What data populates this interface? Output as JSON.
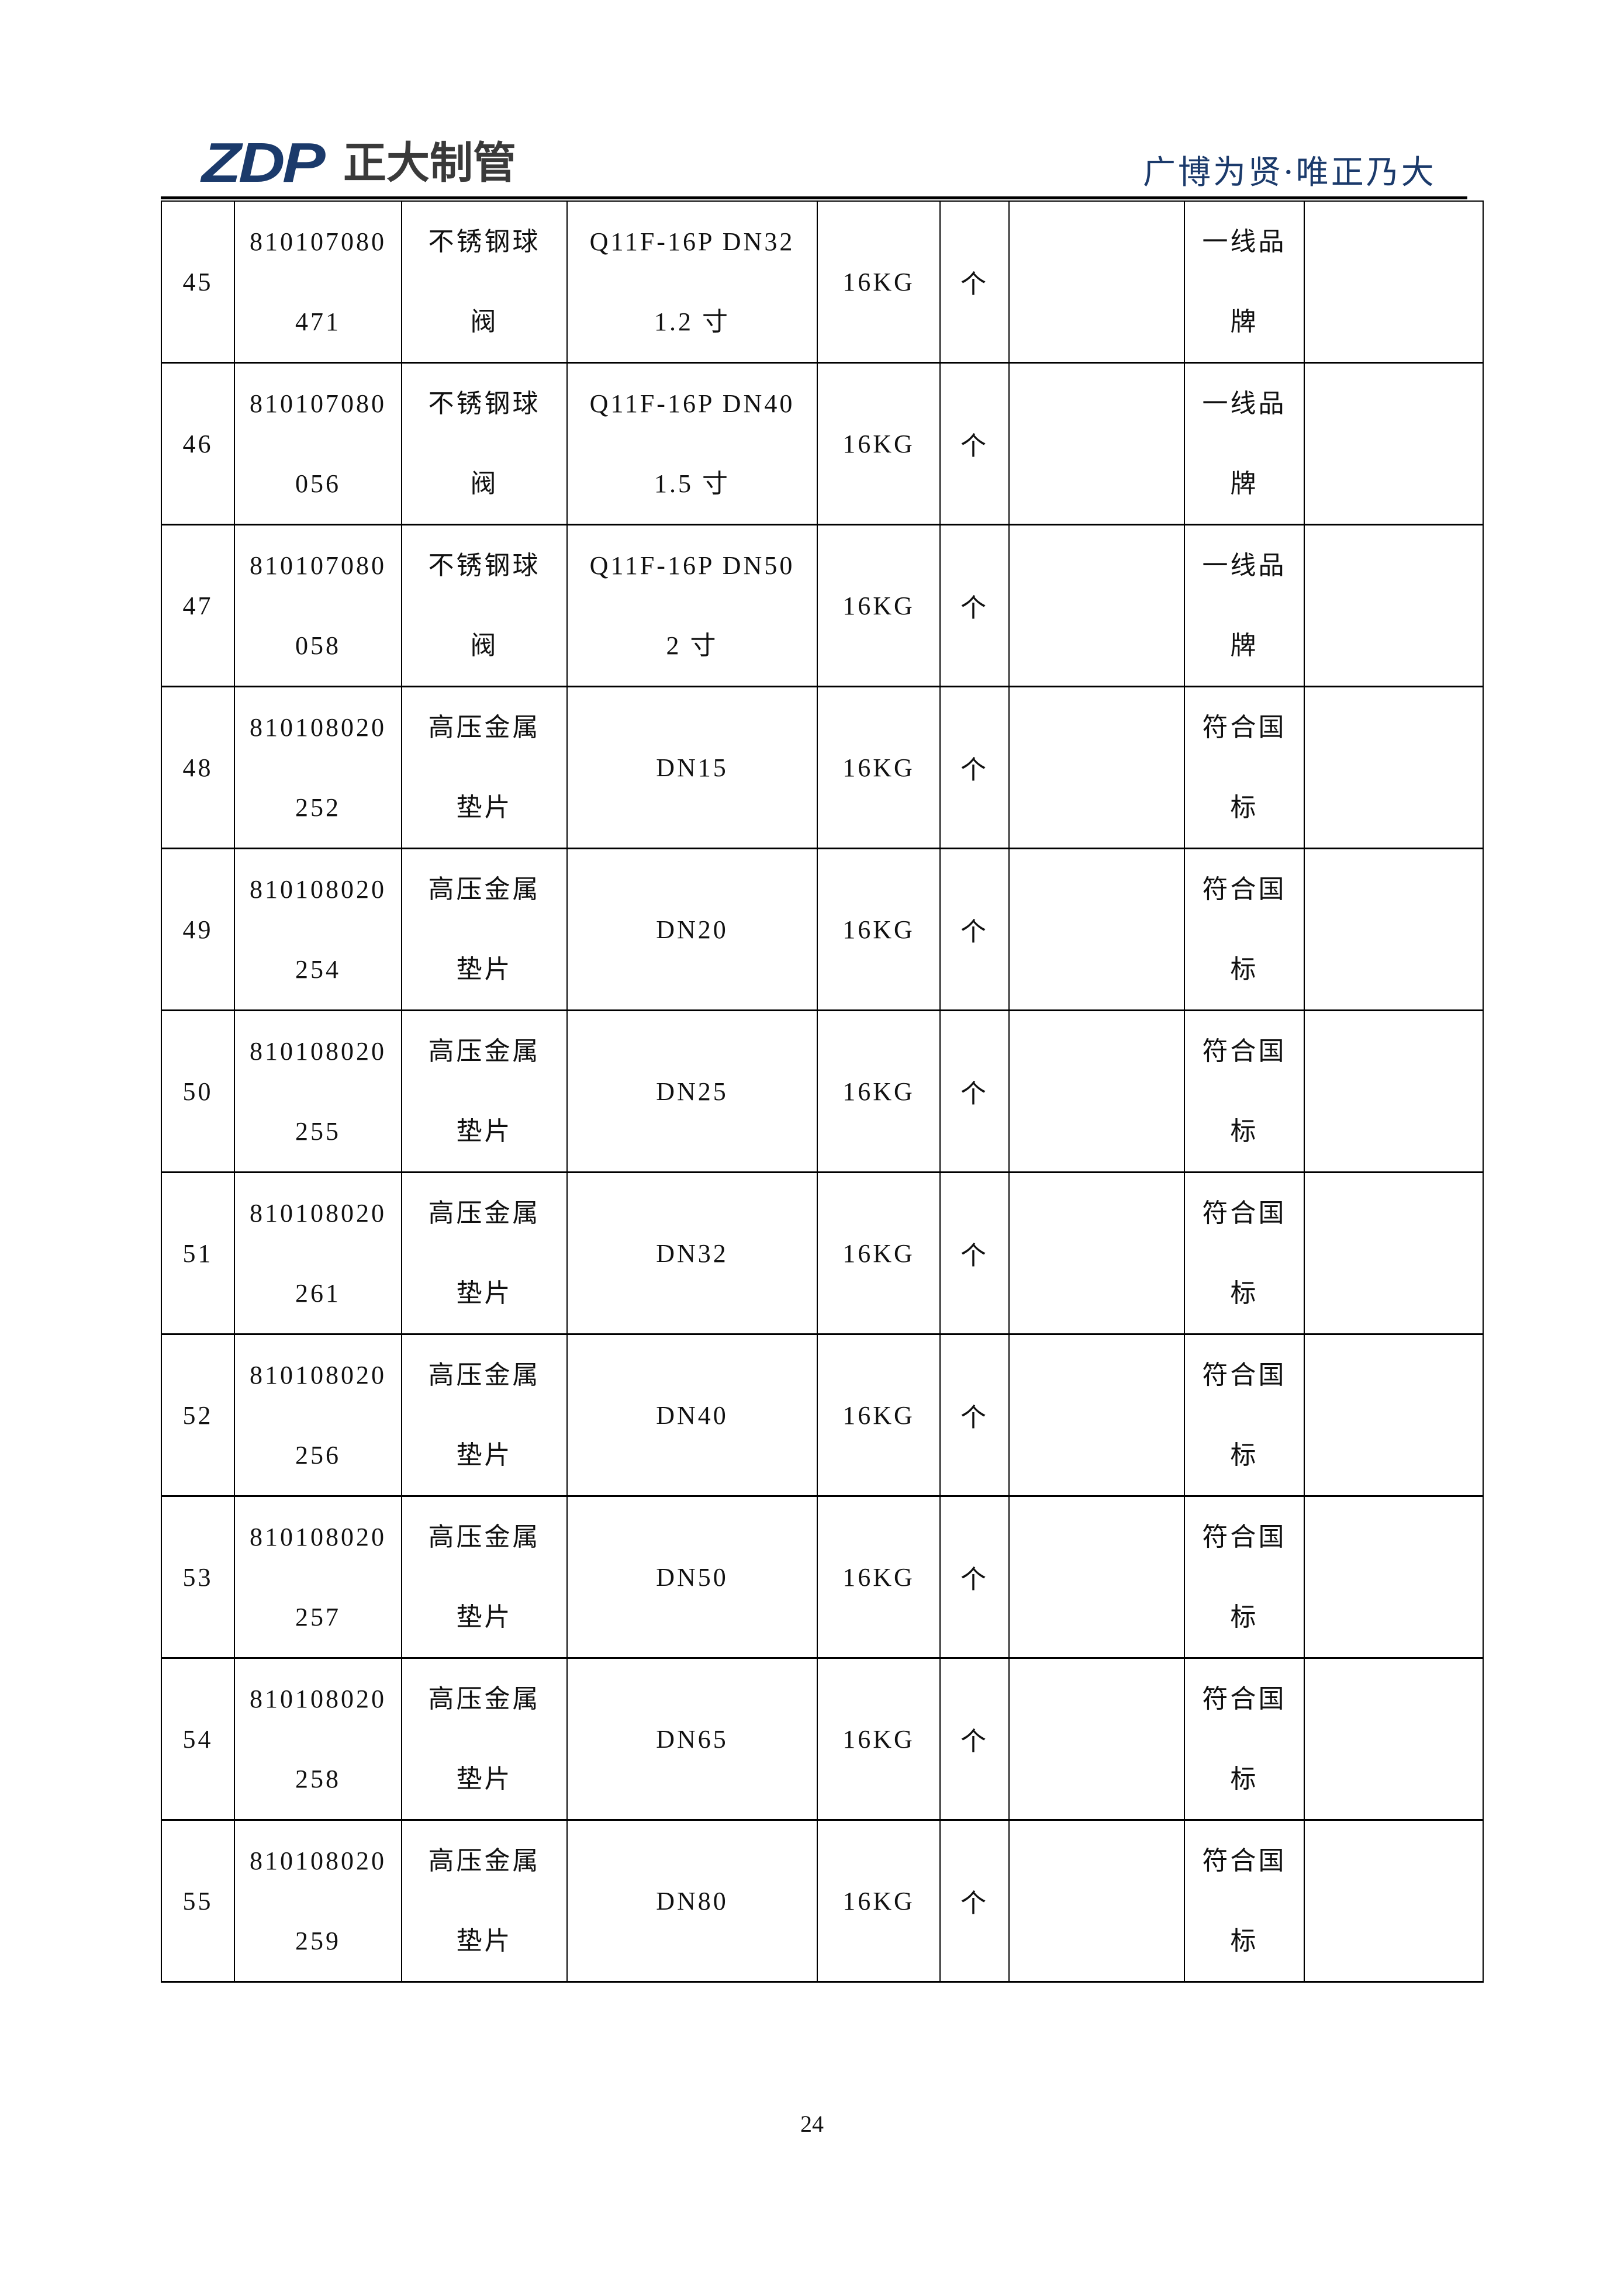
{
  "header": {
    "logo_mark": "ZDP",
    "logo_name": "正大制管",
    "slogan": "广博为贤·唯正乃大",
    "brand_color": "#1b3a6b"
  },
  "table": {
    "rows": [
      {
        "no": "45",
        "code": [
          "810107080",
          "471"
        ],
        "name": [
          "不锈钢球",
          "阀"
        ],
        "spec": [
          "Q11F-16P DN32",
          "1.2 寸"
        ],
        "pressure": "16KG",
        "unit": "个",
        "qty": "",
        "remark": [
          "一线品",
          "牌"
        ],
        "note": ""
      },
      {
        "no": "46",
        "code": [
          "810107080",
          "056"
        ],
        "name": [
          "不锈钢球",
          "阀"
        ],
        "spec": [
          "Q11F-16P DN40",
          "1.5 寸"
        ],
        "pressure": "16KG",
        "unit": "个",
        "qty": "",
        "remark": [
          "一线品",
          "牌"
        ],
        "note": ""
      },
      {
        "no": "47",
        "code": [
          "810107080",
          "058"
        ],
        "name": [
          "不锈钢球",
          "阀"
        ],
        "spec": [
          "Q11F-16P  DN50",
          "2 寸"
        ],
        "pressure": "16KG",
        "unit": "个",
        "qty": "",
        "remark": [
          "一线品",
          "牌"
        ],
        "note": ""
      },
      {
        "no": "48",
        "code": [
          "810108020",
          "252"
        ],
        "name": [
          "高压金属",
          "垫片"
        ],
        "spec": [
          "DN15"
        ],
        "pressure": "16KG",
        "unit": "个",
        "qty": "",
        "remark": [
          "符合国",
          "标"
        ],
        "note": ""
      },
      {
        "no": "49",
        "code": [
          "810108020",
          "254"
        ],
        "name": [
          "高压金属",
          "垫片"
        ],
        "spec": [
          "DN20"
        ],
        "pressure": "16KG",
        "unit": "个",
        "qty": "",
        "remark": [
          "符合国",
          "标"
        ],
        "note": ""
      },
      {
        "no": "50",
        "code": [
          "810108020",
          "255"
        ],
        "name": [
          "高压金属",
          "垫片"
        ],
        "spec": [
          "DN25"
        ],
        "pressure": "16KG",
        "unit": "个",
        "qty": "",
        "remark": [
          "符合国",
          "标"
        ],
        "note": ""
      },
      {
        "no": "51",
        "code": [
          "810108020",
          "261"
        ],
        "name": [
          "高压金属",
          "垫片"
        ],
        "spec": [
          "DN32"
        ],
        "pressure": "16KG",
        "unit": "个",
        "qty": "",
        "remark": [
          "符合国",
          "标"
        ],
        "note": ""
      },
      {
        "no": "52",
        "code": [
          "810108020",
          "256"
        ],
        "name": [
          "高压金属",
          "垫片"
        ],
        "spec": [
          "DN40"
        ],
        "pressure": "16KG",
        "unit": "个",
        "qty": "",
        "remark": [
          "符合国",
          "标"
        ],
        "note": ""
      },
      {
        "no": "53",
        "code": [
          "810108020",
          "257"
        ],
        "name": [
          "高压金属",
          "垫片"
        ],
        "spec": [
          "DN50"
        ],
        "pressure": "16KG",
        "unit": "个",
        "qty": "",
        "remark": [
          "符合国",
          "标"
        ],
        "note": ""
      },
      {
        "no": "54",
        "code": [
          "810108020",
          "258"
        ],
        "name": [
          "高压金属",
          "垫片"
        ],
        "spec": [
          "DN65"
        ],
        "pressure": "16KG",
        "unit": "个",
        "qty": "",
        "remark": [
          "符合国",
          "标"
        ],
        "note": ""
      },
      {
        "no": "55",
        "code": [
          "810108020",
          "259"
        ],
        "name": [
          "高压金属",
          "垫片"
        ],
        "spec": [
          "DN80"
        ],
        "pressure": "16KG",
        "unit": "个",
        "qty": "",
        "remark": [
          "符合国",
          "标"
        ],
        "note": ""
      }
    ]
  },
  "footer": {
    "page_number": "24"
  }
}
